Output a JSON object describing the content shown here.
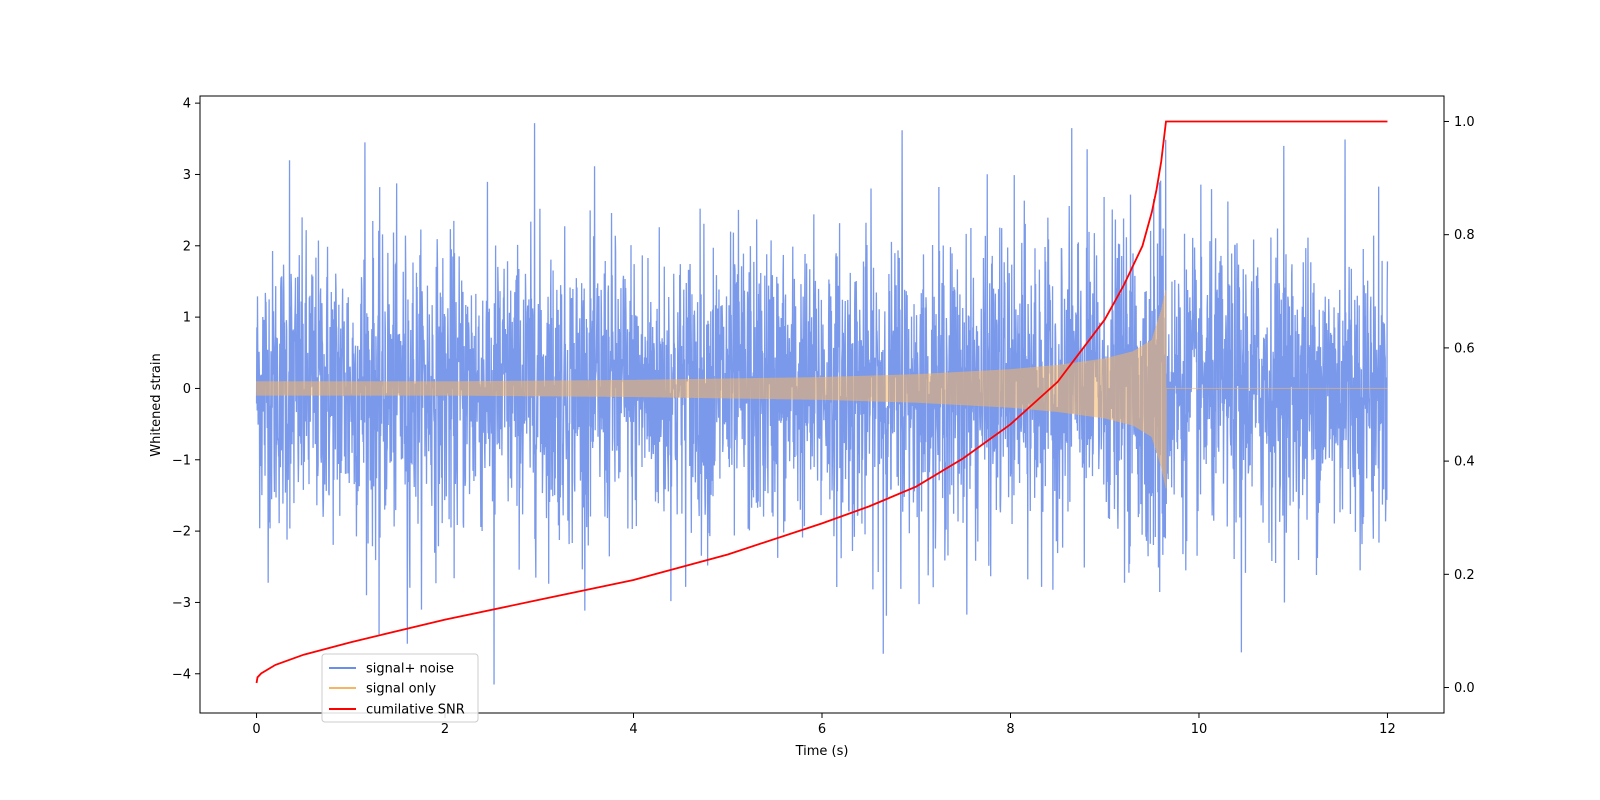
{
  "chart_data": {
    "type": "line",
    "title": "",
    "xlabel": "Time (s)",
    "ylabel": "Whitened strain",
    "ylabel_right": "",
    "xlim": [
      -0.6,
      12.6
    ],
    "ylim": [
      -4.55,
      4.1
    ],
    "ylim_right": [
      -0.045,
      1.045
    ],
    "x_ticks": [
      0,
      2,
      4,
      6,
      8,
      10,
      12
    ],
    "y_ticks": [
      -4,
      -3,
      -2,
      -1,
      0,
      1,
      2,
      3,
      4
    ],
    "y_ticks_right": [
      0.0,
      0.2,
      0.4,
      0.6,
      0.8,
      1.0
    ],
    "y_tick_labels_right": [
      "0.0",
      "0.2",
      "0.4",
      "0.6",
      "0.8",
      "1.0"
    ],
    "grid": false,
    "legend_position": "lower-left",
    "series": [
      {
        "name": "signal+ noise",
        "axis": "left",
        "color": "#6b8ee8",
        "description_values": {
          "x_range": [
            0,
            12
          ],
          "noise_std": 1.0,
          "max": 3.72,
          "min": -4.15,
          "peak_points": [
            [
              0.35,
              3.2
            ],
            [
              1.15,
              3.45
            ],
            [
              2.95,
              3.72
            ],
            [
              2.52,
              -4.15
            ],
            [
              6.85,
              3.62
            ],
            [
              6.65,
              -3.72
            ],
            [
              8.65,
              3.65
            ],
            [
              11.55,
              3.49
            ],
            [
              10.9,
              3.4
            ],
            [
              10.45,
              -3.7
            ],
            [
              1.3,
              -3.45
            ],
            [
              1.6,
              -3.58
            ]
          ]
        }
      },
      {
        "name": "signal only",
        "axis": "left",
        "color": "#f5b562",
        "description_values": {
          "x_range": [
            0,
            12
          ],
          "envelope": [
            [
              0,
              0.1
            ],
            [
              2,
              0.1
            ],
            [
              4,
              0.12
            ],
            [
              6,
              0.16
            ],
            [
              7,
              0.2
            ],
            [
              8,
              0.27
            ],
            [
              8.5,
              0.33
            ],
            [
              9,
              0.42
            ],
            [
              9.3,
              0.52
            ],
            [
              9.5,
              0.68
            ],
            [
              9.6,
              1.1
            ],
            [
              9.65,
              1.4
            ]
          ],
          "merger_time": 9.65,
          "post_merger_value": 0.0
        }
      },
      {
        "name": "cumilative SNR",
        "axis": "right",
        "color": "#ff0000",
        "x": [
          0,
          0.01,
          0.05,
          0.2,
          0.5,
          1,
          2,
          3,
          4,
          5,
          6,
          6.5,
          7,
          7.5,
          8,
          8.5,
          9,
          9.2,
          9.4,
          9.5,
          9.55,
          9.6,
          9.65,
          10,
          11,
          12
        ],
        "values": [
          0.008,
          0.018,
          0.025,
          0.04,
          0.058,
          0.08,
          0.12,
          0.155,
          0.19,
          0.235,
          0.29,
          0.32,
          0.355,
          0.405,
          0.465,
          0.54,
          0.65,
          0.71,
          0.78,
          0.84,
          0.88,
          0.93,
          1.0,
          1.0,
          1.0,
          1.0
        ]
      }
    ]
  }
}
